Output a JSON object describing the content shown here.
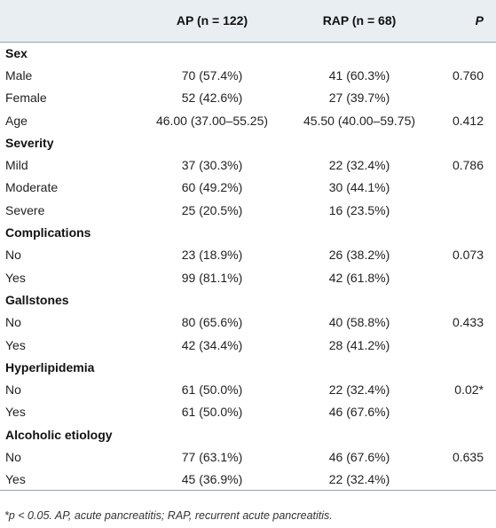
{
  "header": {
    "col0": "",
    "col1": "AP (n = 122)",
    "col2": "RAP (n = 68)",
    "col3": "P"
  },
  "rows": [
    {
      "type": "section",
      "label": "Sex",
      "ap": "",
      "rap": "",
      "p": ""
    },
    {
      "type": "row",
      "label": "Male",
      "ap": "70 (57.4%)",
      "rap": "41 (60.3%)",
      "p": "0.760"
    },
    {
      "type": "row",
      "label": "Female",
      "ap": "52 (42.6%)",
      "rap": "27 (39.7%)",
      "p": ""
    },
    {
      "type": "row",
      "label": "Age",
      "ap": "46.00 (37.00–55.25)",
      "rap": "45.50 (40.00–59.75)",
      "p": "0.412"
    },
    {
      "type": "section",
      "label": "Severity",
      "ap": "",
      "rap": "",
      "p": ""
    },
    {
      "type": "row",
      "label": "Mild",
      "ap": "37 (30.3%)",
      "rap": "22 (32.4%)",
      "p": "0.786"
    },
    {
      "type": "row",
      "label": "Moderate",
      "ap": "60 (49.2%)",
      "rap": "30 (44.1%)",
      "p": ""
    },
    {
      "type": "row",
      "label": "Severe",
      "ap": "25 (20.5%)",
      "rap": "16 (23.5%)",
      "p": ""
    },
    {
      "type": "section",
      "label": "Complications",
      "ap": "",
      "rap": "",
      "p": ""
    },
    {
      "type": "row",
      "label": "No",
      "ap": "23 (18.9%)",
      "rap": "26 (38.2%)",
      "p": "0.073"
    },
    {
      "type": "row",
      "label": "Yes",
      "ap": "99 (81.1%)",
      "rap": "42 (61.8%)",
      "p": ""
    },
    {
      "type": "section",
      "label": "Gallstones",
      "ap": "",
      "rap": "",
      "p": ""
    },
    {
      "type": "row",
      "label": "No",
      "ap": "80 (65.6%)",
      "rap": "40 (58.8%)",
      "p": "0.433"
    },
    {
      "type": "row",
      "label": "Yes",
      "ap": "42 (34.4%)",
      "rap": "28 (41.2%)",
      "p": ""
    },
    {
      "type": "section",
      "label": "Hyperlipidemia",
      "ap": "",
      "rap": "",
      "p": ""
    },
    {
      "type": "row",
      "label": "No",
      "ap": "61 (50.0%)",
      "rap": "22 (32.4%)",
      "p": "0.02*"
    },
    {
      "type": "row",
      "label": "Yes",
      "ap": "61 (50.0%)",
      "rap": "46 (67.6%)",
      "p": ""
    },
    {
      "type": "section",
      "label": "Alcoholic etiology",
      "ap": "",
      "rap": "",
      "p": ""
    },
    {
      "type": "row",
      "label": "No",
      "ap": "77 (63.1%)",
      "rap": "46 (67.6%)",
      "p": "0.635"
    },
    {
      "type": "row",
      "label": "Yes",
      "ap": "45 (36.9%)",
      "rap": "22 (32.4%)",
      "p": ""
    }
  ],
  "footnote": "*p < 0.05. AP, acute pancreatitis; RAP, recurrent acute pancreatitis."
}
